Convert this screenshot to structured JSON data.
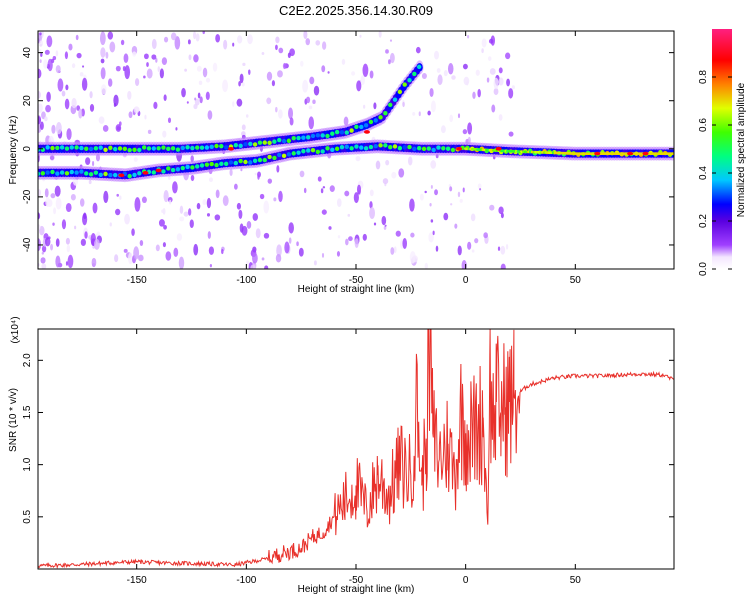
{
  "title": "C2E2.2025.356.14.30.R09",
  "colors": {
    "snr_line": "#e8302a",
    "background": "#ffffff",
    "axis": "#000000"
  },
  "chart_data": [
    {
      "type": "heatmap",
      "title": "C2E2.2025.356.14.30.R09",
      "xlabel": "Height of straight line (km)",
      "ylabel": "Frequency (Hz)",
      "xlim": [
        -195,
        95
      ],
      "ylim": [
        -50,
        49
      ],
      "x_ticks": [
        -150,
        -100,
        -50,
        0,
        50
      ],
      "x_tick_labels": [
        "-150",
        "-100",
        "-50",
        "0",
        "50"
      ],
      "y_ticks": [
        -40,
        -20,
        0,
        20,
        40
      ],
      "y_tick_labels": [
        "-40",
        "-20",
        "0",
        "20",
        "40"
      ],
      "colorbar": {
        "label": "Normalized spectral amplitude",
        "range": [
          0,
          1
        ],
        "ticks": [
          0,
          0.2,
          0.4,
          0.6,
          0.8
        ],
        "tick_labels": [
          "0.0",
          "0.2",
          "0.4",
          "0.6",
          "0.8"
        ],
        "colormap": "rainbow (white-purple-blue-cyan-green-yellow-red-magenta)"
      },
      "ridges": [
        {
          "name": "upper branch",
          "points": [
            [
              -195,
              0
            ],
            [
              -175,
              0
            ],
            [
              -130,
              0
            ],
            [
              -110,
              1
            ],
            [
              -90,
              3
            ],
            [
              -70,
              5
            ],
            [
              -55,
              7
            ],
            [
              -45,
              10
            ],
            [
              -38,
              13
            ],
            [
              -28,
              26
            ],
            [
              -20,
              35
            ]
          ]
        },
        {
          "name": "lower branch",
          "points": [
            [
              -195,
              -10
            ],
            [
              -175,
              -10
            ],
            [
              -155,
              -11
            ],
            [
              -140,
              -9
            ],
            [
              -125,
              -8
            ],
            [
              -110,
              -6
            ],
            [
              -95,
              -5
            ],
            [
              -80,
              -2
            ],
            [
              -60,
              0
            ],
            [
              -40,
              1
            ],
            [
              -20,
              0
            ],
            [
              0,
              0
            ],
            [
              20,
              -1
            ],
            [
              50,
              -2
            ],
            [
              95,
              -2
            ]
          ]
        }
      ]
    },
    {
      "type": "line",
      "title": "",
      "xlabel": "Height of straight line (km)",
      "ylabel": "SNR (10 * v/v)",
      "y_multiplier": "(x10⁴)",
      "xlim": [
        -195,
        95
      ],
      "ylim": [
        0,
        2.3
      ],
      "x_ticks": [
        -150,
        -100,
        -50,
        0,
        50
      ],
      "x_tick_labels": [
        "-150",
        "-100",
        "-50",
        "0",
        "50"
      ],
      "y_ticks": [
        0.5,
        1.0,
        1.5,
        2.0
      ],
      "y_tick_labels": [
        "0.5",
        "1.0",
        "1.5",
        "2.0"
      ],
      "series": [
        {
          "name": "SNR",
          "x": [
            -195,
            -180,
            -160,
            -150,
            -140,
            -120,
            -105,
            -100,
            -95,
            -90,
            -85,
            -80,
            -75,
            -70,
            -65,
            -60,
            -55,
            -50,
            -45,
            -40,
            -35,
            -30,
            -25,
            -22,
            -20,
            -18,
            -16,
            -15,
            -14,
            -12,
            -10,
            -8,
            -5,
            -2,
            0,
            3,
            5,
            8,
            10,
            11,
            12,
            14,
            16,
            18,
            20,
            22,
            25,
            28,
            30,
            35,
            40,
            50,
            60,
            70,
            80,
            90,
            95
          ],
          "values": [
            0.03,
            0.04,
            0.06,
            0.07,
            0.06,
            0.05,
            0.04,
            0.06,
            0.08,
            0.1,
            0.14,
            0.17,
            0.2,
            0.3,
            0.35,
            0.5,
            0.65,
            0.8,
            0.55,
            0.9,
            0.7,
            1.0,
            0.9,
            1.6,
            0.8,
            1.25,
            2.25,
            1.3,
            1.2,
            1.05,
            1.15,
            1.2,
            0.9,
            1.5,
            1.3,
            1.3,
            1.35,
            1.45,
            0.45,
            2.05,
            1.4,
            1.6,
            1.5,
            1.55,
            1.6,
            1.65,
            1.7,
            1.75,
            1.77,
            1.8,
            1.83,
            1.85,
            1.85,
            1.86,
            1.87,
            1.86,
            1.81
          ]
        }
      ]
    }
  ]
}
